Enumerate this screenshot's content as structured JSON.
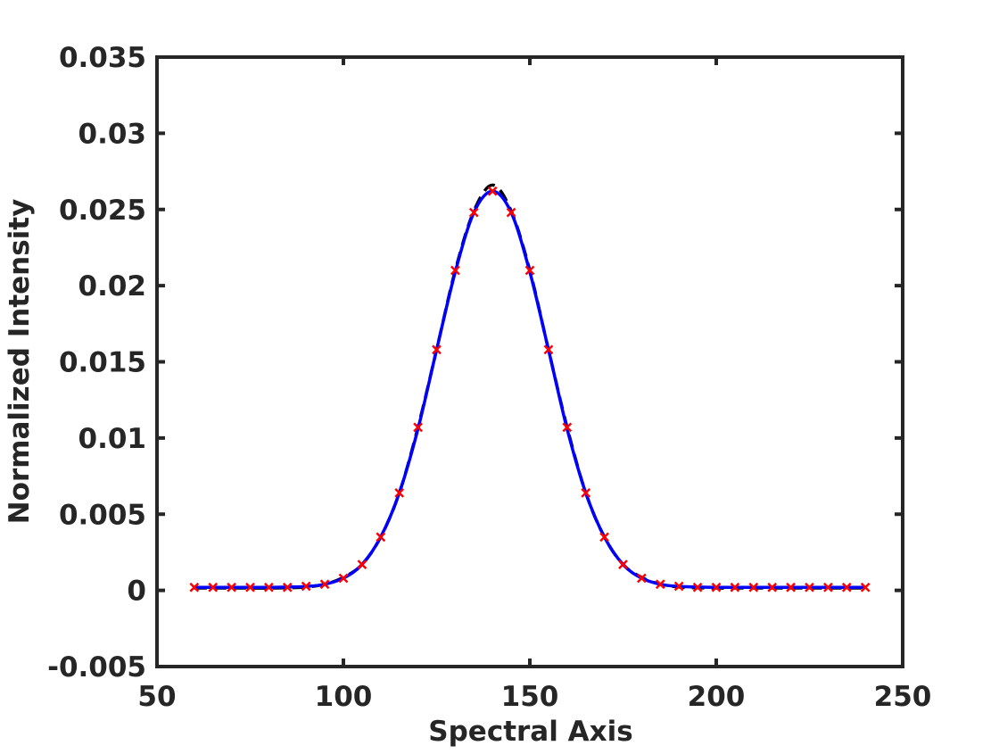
{
  "chart_data": {
    "type": "line",
    "title": "",
    "xlabel": "Spectral Axis",
    "ylabel": "Normalized Intensity",
    "xlim": [
      50,
      250
    ],
    "ylim": [
      -0.005,
      0.035
    ],
    "x_ticks": [
      {
        "value": 50,
        "label": "50"
      },
      {
        "value": 100,
        "label": "100"
      },
      {
        "value": 150,
        "label": "150"
      },
      {
        "value": 200,
        "label": "200"
      },
      {
        "value": 250,
        "label": "250"
      }
    ],
    "y_ticks": [
      {
        "value": -0.005,
        "label": "-0.005"
      },
      {
        "value": 0,
        "label": "0"
      },
      {
        "value": 0.005,
        "label": "0.005"
      },
      {
        "value": 0.01,
        "label": "0.01"
      },
      {
        "value": 0.015,
        "label": "0.015"
      },
      {
        "value": 0.02,
        "label": "0.02"
      },
      {
        "value": 0.025,
        "label": "0.025"
      },
      {
        "value": 0.03,
        "label": "0.03"
      },
      {
        "value": 0.035,
        "label": "0.035"
      }
    ],
    "grid": false,
    "box": true,
    "series": [
      {
        "style": "dashed-line",
        "color": "#000000",
        "x": [
          60,
          65,
          70,
          75,
          80,
          85,
          90,
          95,
          100,
          105,
          110,
          115,
          120,
          125,
          130,
          135,
          140,
          145,
          150,
          155,
          160,
          165,
          170,
          175,
          180,
          185,
          190,
          195,
          200,
          205,
          210,
          215,
          220,
          225,
          230,
          235,
          240
        ],
        "y": [
          0.00015,
          0.00015,
          0.00015,
          0.00015,
          0.00015,
          0.00017,
          0.00022,
          0.0004,
          0.00085,
          0.0017,
          0.0035,
          0.0064,
          0.0107,
          0.0158,
          0.021,
          0.0249,
          0.0266,
          0.0249,
          0.021,
          0.0158,
          0.0107,
          0.0064,
          0.0035,
          0.0017,
          0.00085,
          0.0004,
          0.00022,
          0.00017,
          0.00015,
          0.00015,
          0.00015,
          0.00015,
          0.00015,
          0.00015,
          0.00015,
          0.00015,
          0.00015
        ]
      },
      {
        "style": "solid-line",
        "color": "#0000ff",
        "x": [
          60,
          65,
          70,
          75,
          80,
          85,
          90,
          95,
          100,
          105,
          110,
          115,
          120,
          125,
          130,
          135,
          140,
          145,
          150,
          155,
          160,
          165,
          170,
          175,
          180,
          185,
          190,
          195,
          200,
          205,
          210,
          215,
          220,
          225,
          230,
          235,
          240
        ],
        "y": [
          0.0002,
          0.0002,
          0.0002,
          0.0002,
          0.0002,
          0.00022,
          0.00026,
          0.0004,
          0.0008,
          0.0017,
          0.0035,
          0.0064,
          0.0106,
          0.0158,
          0.0209,
          0.0248,
          0.0262,
          0.0248,
          0.0209,
          0.0158,
          0.0106,
          0.0064,
          0.0035,
          0.0017,
          0.0008,
          0.0004,
          0.00026,
          0.00022,
          0.0002,
          0.0002,
          0.0002,
          0.0002,
          0.0002,
          0.0002,
          0.0002,
          0.0002,
          0.0002
        ]
      },
      {
        "style": "x-markers",
        "color": "#ff0000",
        "x": [
          60,
          65,
          70,
          75,
          80,
          85,
          90,
          95,
          100,
          105,
          110,
          115,
          120,
          125,
          130,
          135,
          140,
          145,
          150,
          155,
          160,
          165,
          170,
          175,
          180,
          185,
          190,
          195,
          200,
          205,
          210,
          215,
          220,
          225,
          230,
          235,
          240
        ],
        "y": [
          0.0002,
          0.0002,
          0.0002,
          0.0002,
          0.0002,
          0.0002,
          0.00027,
          0.0004,
          0.0008,
          0.0017,
          0.0035,
          0.0064,
          0.0107,
          0.0158,
          0.021,
          0.0248,
          0.0262,
          0.0248,
          0.021,
          0.0158,
          0.0107,
          0.0064,
          0.0035,
          0.0017,
          0.0008,
          0.0004,
          0.00027,
          0.0002,
          0.0002,
          0.0002,
          0.0002,
          0.0002,
          0.0002,
          0.0002,
          0.0002,
          0.0002,
          0.0002
        ]
      }
    ]
  }
}
